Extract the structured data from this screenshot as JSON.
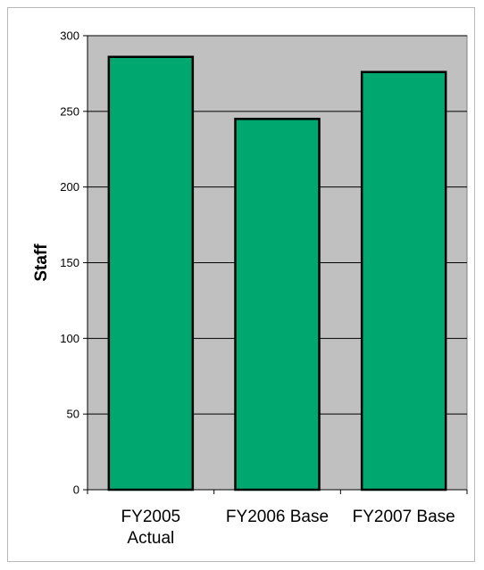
{
  "chart_data": {
    "type": "bar",
    "categories": [
      [
        "FY2005",
        "Actual"
      ],
      [
        "FY2006 Base"
      ],
      [
        "FY2007 Base"
      ]
    ],
    "values": [
      286,
      245,
      276
    ],
    "ylabel": "Staff",
    "ylim": [
      0,
      300
    ],
    "yticks": [
      0,
      50,
      100,
      150,
      200,
      250,
      300
    ],
    "grid": true,
    "colors": {
      "bar": "#00a86f",
      "plot_bg": "#c0c0c0",
      "bar_border": "#000000"
    }
  }
}
